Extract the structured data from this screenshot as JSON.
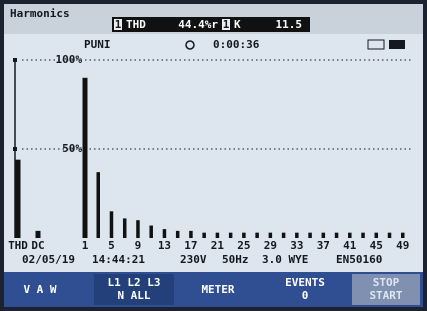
{
  "header": {
    "title": "Harmonics",
    "phase": "1",
    "thd_label": "THD",
    "thd_value": "44.4%r",
    "k_label": "K",
    "k_value": "11.5"
  },
  "status": {
    "mode": "PUNI",
    "timer": "0:00:36"
  },
  "chart_data": {
    "type": "bar",
    "categories": [
      "THD",
      "DC",
      "1",
      null,
      null,
      null,
      "5",
      null,
      null,
      null,
      "9",
      null,
      null,
      null,
      "13",
      null,
      null,
      null,
      "17",
      null,
      null,
      null,
      "21",
      null,
      null,
      null,
      "25",
      null,
      null,
      null,
      "29",
      null,
      null,
      null,
      "33",
      null,
      null,
      null,
      "37",
      null,
      null,
      null,
      "41",
      null,
      null,
      null,
      "45",
      null,
      null,
      null,
      "49",
      null
    ],
    "values": [
      44,
      4,
      90,
      0,
      37,
      0,
      15,
      0,
      11,
      0,
      10,
      0,
      7,
      0,
      5,
      0,
      4,
      0,
      4,
      0,
      3,
      0,
      3,
      0,
      3,
      0,
      3,
      0,
      3,
      0,
      3,
      0,
      3,
      0,
      3,
      0,
      3,
      0,
      3,
      0,
      3,
      0,
      3,
      0,
      3,
      0,
      3,
      0,
      3,
      0,
      3,
      0
    ],
    "color": "#111111",
    "ylim": [
      0,
      100
    ],
    "yticks": [
      {
        "value": 50,
        "label": "50%"
      },
      {
        "value": 100,
        "label": "100%"
      }
    ],
    "grid": true
  },
  "footer": {
    "date": "02/05/19",
    "time": "14:44:21",
    "voltage": "230V",
    "frequency": "50Hz",
    "wiring": "3.0 WYE",
    "standard": "EN50160"
  },
  "softkeys": {
    "k1": "V A W",
    "k2a": "L1 L2 L3",
    "k2b": "N ALL",
    "k3": "METER",
    "k4a": "EVENTS",
    "k4b": "0",
    "k5a": "STOP",
    "k5b": "START"
  }
}
